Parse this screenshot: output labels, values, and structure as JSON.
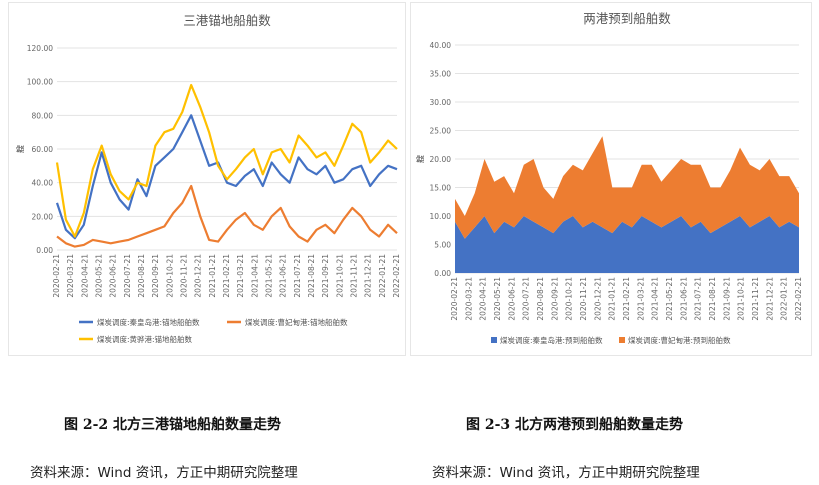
{
  "chart_data": [
    {
      "type": "line",
      "title": "三港锚地船舶数",
      "ylabel": "艘",
      "ylim": [
        0,
        120
      ],
      "yticks": [
        "0.00",
        "20.00",
        "40.00",
        "60.00",
        "80.00",
        "100.00",
        "120.00"
      ],
      "x_ticks": [
        "2020-02-21",
        "2020-03-21",
        "2020-04-21",
        "2020-05-21",
        "2020-06-21",
        "2020-07-21",
        "2020-08-21",
        "2020-09-21",
        "2020-10-21",
        "2020-11-21",
        "2020-12-21",
        "2021-01-21",
        "2021-02-21",
        "2021-03-21",
        "2021-04-21",
        "2021-05-21",
        "2021-06-21",
        "2021-07-21",
        "2021-08-21",
        "2021-09-21",
        "2021-10-21",
        "2021-11-21",
        "2021-12-21",
        "2022-01-21",
        "2022-02-21"
      ],
      "grid": true,
      "legend": "bottom",
      "series": [
        {
          "name": "煤炭调度:秦皇岛港:锚地船舶数",
          "color": "#4472C4",
          "values": [
            28,
            12,
            7,
            15,
            38,
            58,
            40,
            30,
            24,
            42,
            32,
            50,
            55,
            60,
            70,
            80,
            65,
            50,
            52,
            40,
            38,
            44,
            48,
            38,
            52,
            45,
            40,
            55,
            48,
            45,
            50,
            40,
            42,
            48,
            50,
            38,
            45,
            50,
            48
          ]
        },
        {
          "name": "煤炭调度:曹妃甸港:锚地船舶数",
          "color": "#ED7D31",
          "values": [
            8,
            4,
            2,
            3,
            6,
            5,
            4,
            5,
            6,
            8,
            10,
            12,
            14,
            22,
            28,
            38,
            20,
            6,
            5,
            12,
            18,
            22,
            15,
            12,
            20,
            25,
            14,
            8,
            5,
            12,
            15,
            10,
            18,
            25,
            20,
            12,
            8,
            15,
            10
          ]
        },
        {
          "name": "煤炭调度:黄骅港:锚地船舶数",
          "color": "#FFC000",
          "values": [
            52,
            18,
            8,
            22,
            48,
            62,
            45,
            35,
            30,
            40,
            38,
            62,
            70,
            72,
            82,
            98,
            85,
            70,
            50,
            42,
            48,
            55,
            60,
            45,
            58,
            60,
            52,
            68,
            62,
            55,
            58,
            50,
            62,
            75,
            70,
            52,
            58,
            65,
            60
          ]
        }
      ]
    },
    {
      "type": "area",
      "stacked": true,
      "title": "两港预到船舶数",
      "ylabel": "艘",
      "ylim": [
        0,
        40
      ],
      "yticks": [
        "0.00",
        "5.00",
        "10.00",
        "15.00",
        "20.00",
        "25.00",
        "30.00",
        "35.00",
        "40.00"
      ],
      "x_ticks": [
        "2020-02-21",
        "2020-03-21",
        "2020-04-21",
        "2020-05-21",
        "2020-06-21",
        "2020-07-21",
        "2020-08-21",
        "2020-09-21",
        "2020-10-21",
        "2020-11-21",
        "2020-12-21",
        "2021-01-21",
        "2021-02-21",
        "2021-03-21",
        "2021-04-21",
        "2021-05-21",
        "2021-06-21",
        "2021-07-21",
        "2021-08-21",
        "2021-09-21",
        "2021-10-21",
        "2021-11-21",
        "2021-12-21",
        "2022-01-21",
        "2022-02-21"
      ],
      "grid": true,
      "legend": "bottom",
      "series": [
        {
          "name": "煤炭调度:秦皇岛港:预到船舶数",
          "color": "#4472C4",
          "values": [
            9,
            6,
            8,
            10,
            7,
            9,
            8,
            10,
            9,
            8,
            7,
            9,
            10,
            8,
            9,
            8,
            7,
            9,
            8,
            10,
            9,
            8,
            9,
            10,
            8,
            9,
            7,
            8,
            9,
            10,
            8,
            9,
            10,
            8,
            9,
            8
          ]
        },
        {
          "name": "煤炭调度:曹妃甸港:预到船舶数",
          "color": "#ED7D31",
          "values": [
            4,
            4,
            6,
            10,
            9,
            8,
            6,
            9,
            11,
            7,
            6,
            8,
            9,
            10,
            12,
            16,
            8,
            6,
            7,
            9,
            10,
            8,
            9,
            10,
            11,
            10,
            8,
            7,
            9,
            12,
            11,
            9,
            10,
            9,
            8,
            6
          ]
        }
      ]
    }
  ],
  "captions": {
    "left": "图 2-2 北方三港锚地船舶数量走势",
    "right": "图 2-3 北方两港预到船舶数量走势",
    "source_left": "资料来源：Wind 资讯，方正中期研究院整理",
    "source_right": "资料来源：Wind 资讯，方正中期研究院整理"
  }
}
